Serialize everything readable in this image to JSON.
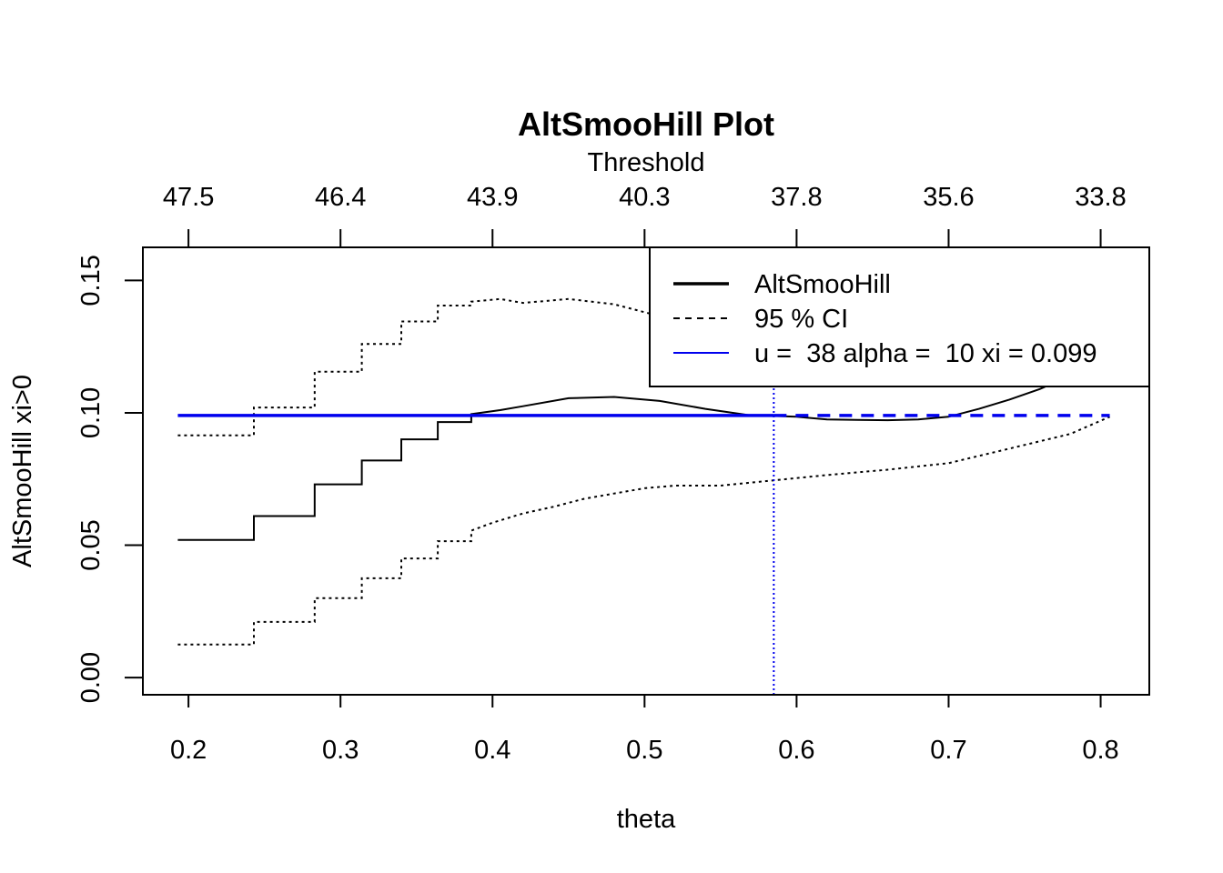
{
  "chart_data": {
    "type": "line",
    "title": "AltSmooHill Plot",
    "top_axis_label": "Threshold",
    "xlabel": "theta",
    "ylabel": "AltSmooHill xi>0",
    "xlim": [
      0.17,
      0.832
    ],
    "ylim": [
      -0.0065,
      0.1625
    ],
    "x_ticks": [
      0.2,
      0.3,
      0.4,
      0.5,
      0.6,
      0.7,
      0.8
    ],
    "x_tick_labels": [
      "0.2",
      "0.3",
      "0.4",
      "0.5",
      "0.6",
      "0.7",
      "0.8"
    ],
    "y_ticks": [
      0.0,
      0.05,
      0.1,
      0.15
    ],
    "y_tick_labels": [
      "0.00",
      "0.05",
      "0.10",
      "0.15"
    ],
    "top_ticks": [
      0.2,
      0.3,
      0.4,
      0.5,
      0.6,
      0.7,
      0.8
    ],
    "top_tick_labels": [
      "47.5",
      "46.4",
      "43.9",
      "40.3",
      "37.8",
      "35.6",
      "33.8"
    ],
    "legend": {
      "position": "top-right",
      "entries": [
        "AltSmooHill",
        "95 % CI",
        "u =  38 alpha =  10 xi = 0.099"
      ]
    },
    "selected_theta": 0.585,
    "selected_xi": 0.099,
    "estimate_x": [
      0.193,
      0.243,
      0.243,
      0.283,
      0.283,
      0.314,
      0.314,
      0.34,
      0.34,
      0.364,
      0.364,
      0.386,
      0.386,
      0.405,
      0.42,
      0.45,
      0.48,
      0.51,
      0.54,
      0.57,
      0.585,
      0.6,
      0.62,
      0.64,
      0.66,
      0.68,
      0.7,
      0.72,
      0.74,
      0.76,
      0.78,
      0.806
    ],
    "estimate_y": [
      0.052,
      0.052,
      0.061,
      0.061,
      0.073,
      0.073,
      0.082,
      0.082,
      0.09,
      0.09,
      0.0965,
      0.0965,
      0.0995,
      0.101,
      0.1025,
      0.1055,
      0.106,
      0.1045,
      0.1015,
      0.099,
      0.0988,
      0.0985,
      0.0975,
      0.0973,
      0.0972,
      0.0975,
      0.0985,
      0.1015,
      0.105,
      0.109,
      0.114,
      0.118
    ],
    "ci_upper_x": [
      0.193,
      0.243,
      0.243,
      0.283,
      0.283,
      0.314,
      0.314,
      0.34,
      0.34,
      0.364,
      0.364,
      0.386,
      0.386,
      0.405,
      0.42,
      0.45,
      0.48,
      0.5,
      0.52
    ],
    "ci_upper_y": [
      0.0915,
      0.0915,
      0.102,
      0.102,
      0.1155,
      0.1155,
      0.126,
      0.126,
      0.1345,
      0.1345,
      0.1405,
      0.1405,
      0.142,
      0.143,
      0.1415,
      0.143,
      0.141,
      0.138,
      0.135
    ],
    "ci_lower_x": [
      0.193,
      0.243,
      0.243,
      0.283,
      0.283,
      0.314,
      0.314,
      0.34,
      0.34,
      0.364,
      0.364,
      0.386,
      0.386,
      0.4,
      0.42,
      0.44,
      0.46,
      0.48,
      0.5,
      0.52,
      0.55,
      0.585,
      0.62,
      0.66,
      0.7,
      0.74,
      0.78,
      0.806
    ],
    "ci_lower_y": [
      0.0125,
      0.0125,
      0.021,
      0.021,
      0.03,
      0.03,
      0.0375,
      0.0375,
      0.045,
      0.045,
      0.0515,
      0.0515,
      0.0555,
      0.0585,
      0.062,
      0.0645,
      0.0675,
      0.0695,
      0.0715,
      0.0725,
      0.0725,
      0.0745,
      0.0765,
      0.0785,
      0.081,
      0.0865,
      0.092,
      0.0985
    ],
    "xi_solid_range": [
      0.193,
      0.585
    ],
    "xi_dashed_range": [
      0.585,
      0.806
    ],
    "colors": {
      "estimate": "#000000",
      "ci": "#000000",
      "selected": "#0000ee"
    }
  }
}
